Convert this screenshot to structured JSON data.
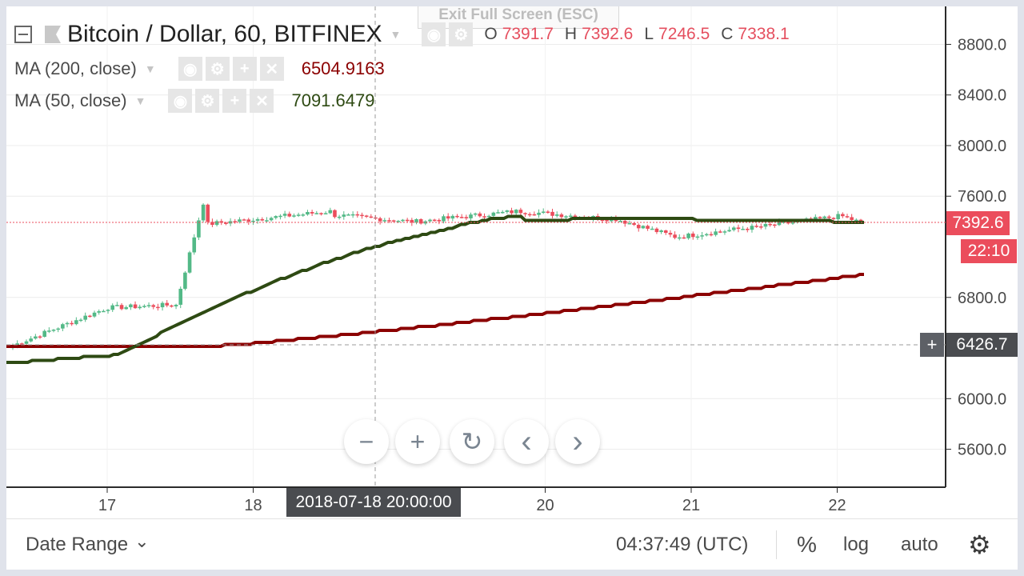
{
  "window": {
    "exit_fullscreen": "Exit Full Screen (ESC)"
  },
  "legend": {
    "title": "Bitcoin / Dollar, 60, BITFINEX",
    "ohlc": [
      {
        "key": "O",
        "value": "7391.7"
      },
      {
        "key": "H",
        "value": "7392.6"
      },
      {
        "key": "L",
        "value": "7246.5"
      },
      {
        "key": "C",
        "value": "7338.1"
      }
    ],
    "indicators": [
      {
        "label": "MA (200, close)",
        "value": "6504.9163",
        "color": "#8b0000"
      },
      {
        "label": "MA (50, close)",
        "value": "7091.6479",
        "color": "#2e4a13"
      }
    ]
  },
  "price_axis": {
    "ticks": [
      "8800.0",
      "8400.0",
      "8000.0",
      "7600.0",
      "6800.0",
      "6000.0",
      "5600.0"
    ],
    "last_price": "7392.6",
    "countdown": "22:10",
    "crosshair_price": "6426.7",
    "crosshair_plus": "+"
  },
  "time_axis": {
    "ticks": [
      "17",
      "18",
      "20",
      "21",
      "22"
    ],
    "crosshair_time": "2018-07-18 20:00:00"
  },
  "zoom_controls": {
    "zoom_out": "−",
    "zoom_in": "+",
    "reset": "↻",
    "scroll_left": "‹",
    "scroll_right": "›"
  },
  "bottom_bar": {
    "date_range": "Date Range",
    "chevron": "⌄",
    "clock": "04:37:49 (UTC)",
    "percent": "%",
    "log": "log",
    "auto": "auto",
    "settings_icon": "⚙"
  },
  "colors": {
    "up": "#53b987",
    "down": "#eb4d5c",
    "ma200": "#8b0000",
    "ma50": "#2e4a13"
  },
  "chart_data": {
    "type": "candlestick",
    "symbol": "Bitcoin / Dollar",
    "interval": "60",
    "exchange": "BITFINEX",
    "ylim": [
      5300,
      9100
    ],
    "x_ticks": [
      "17",
      "18",
      "20",
      "21",
      "22"
    ],
    "segments": [
      {
        "n": 22,
        "start": 6420,
        "end": 6720
      },
      {
        "n": 14,
        "start": 6720,
        "end": 6740
      },
      {
        "n": 7,
        "start": 6740,
        "end": 7550
      },
      {
        "n": 28,
        "start": 7380,
        "end": 7480
      },
      {
        "n": 18,
        "start": 7450,
        "end": 7400
      },
      {
        "n": 23,
        "start": 7400,
        "end": 7480
      },
      {
        "n": 21,
        "start": 7480,
        "end": 7420
      },
      {
        "n": 14,
        "start": 7420,
        "end": 7280
      },
      {
        "n": 16,
        "start": 7280,
        "end": 7350
      },
      {
        "n": 20,
        "start": 7350,
        "end": 7440
      },
      {
        "n": 5,
        "start": 7440,
        "end": 7392
      }
    ],
    "ma50": {
      "start": 6280,
      "end": 7410,
      "peak_at": 0.6
    },
    "ma200": {
      "start": 6420,
      "end": 6980
    }
  }
}
